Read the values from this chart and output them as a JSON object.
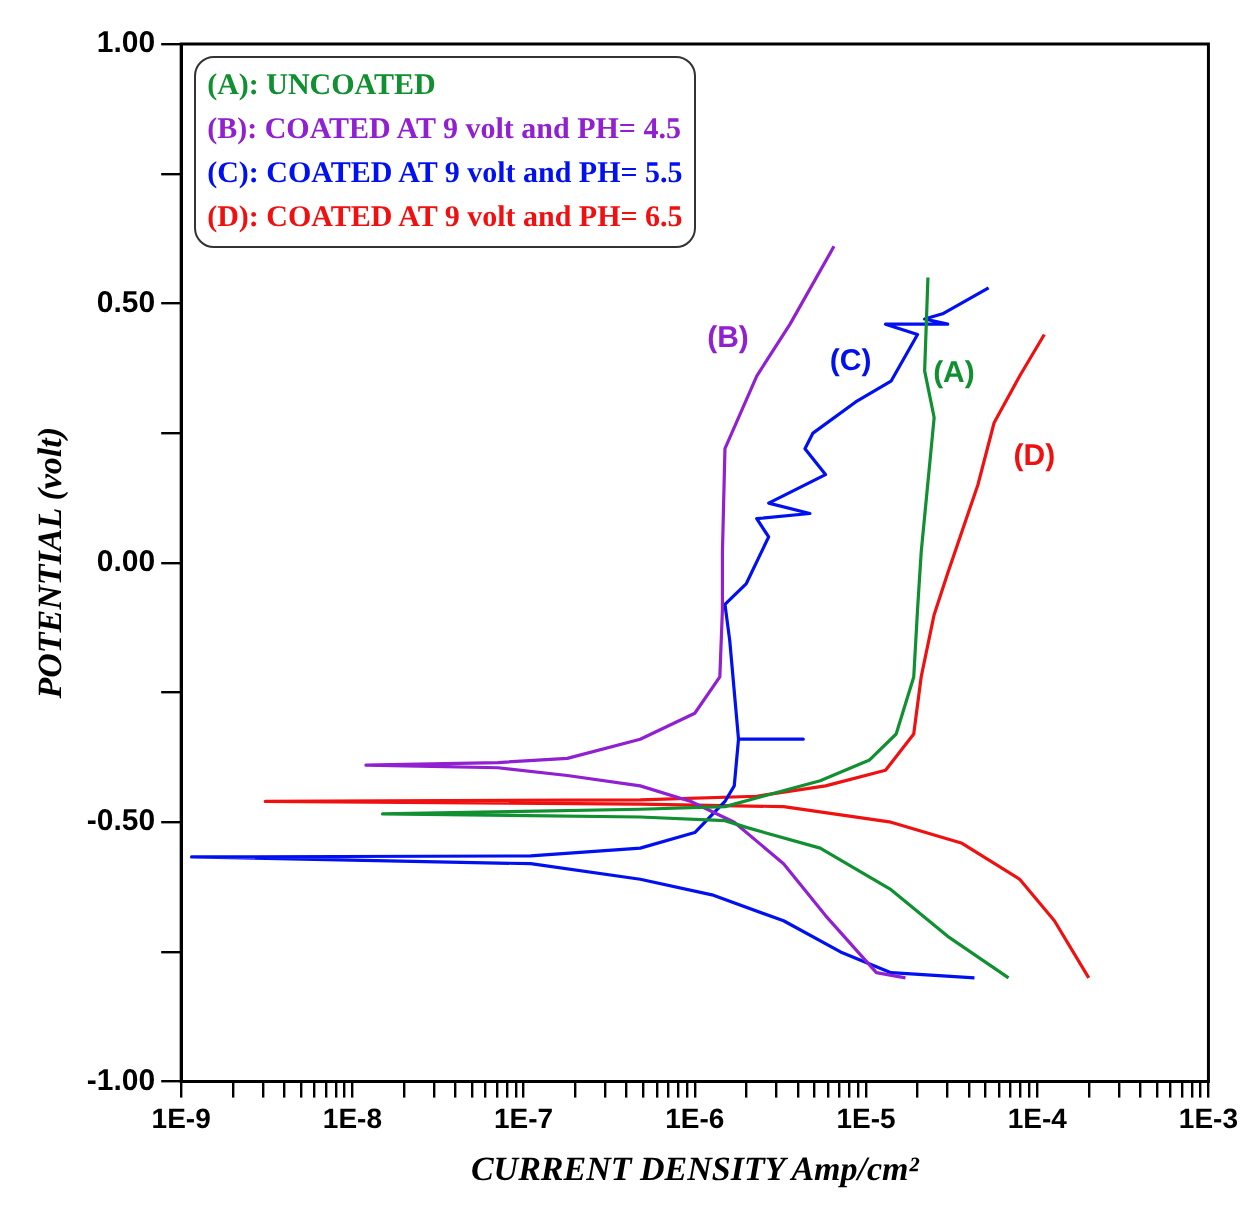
{
  "chart_data": {
    "type": "line",
    "xlabel": "CURRENT DENSITY Amp/cm²",
    "ylabel": "POTENTIAL (volt)",
    "log": "x",
    "grid": false,
    "legend": "top left",
    "marker": "none",
    "line_style": "solid",
    "xlim": [
      1e-09,
      0.001
    ],
    "ylim": [
      -1,
      1
    ],
    "xticks": [
      {
        "value": 1e-09,
        "label": "1E-9"
      },
      {
        "value": 2e-09,
        "label": null
      },
      {
        "value": 3e-09,
        "label": null
      },
      {
        "value": 4e-09,
        "label": null
      },
      {
        "value": 5e-09,
        "label": null
      },
      {
        "value": 6e-09,
        "label": null
      },
      {
        "value": 7e-09,
        "label": null
      },
      {
        "value": 8e-09,
        "label": null
      },
      {
        "value": 9e-09,
        "label": null
      },
      {
        "value": 1e-08,
        "label": "1E-8"
      },
      {
        "value": 2e-08,
        "label": null
      },
      {
        "value": 3e-08,
        "label": null
      },
      {
        "value": 4e-08,
        "label": null
      },
      {
        "value": 5e-08,
        "label": null
      },
      {
        "value": 6e-08,
        "label": null
      },
      {
        "value": 7e-08,
        "label": null
      },
      {
        "value": 8e-08,
        "label": null
      },
      {
        "value": 9e-08,
        "label": null
      },
      {
        "value": 1e-07,
        "label": "1E-7"
      },
      {
        "value": 2e-07,
        "label": null
      },
      {
        "value": 3e-07,
        "label": null
      },
      {
        "value": 4e-07,
        "label": null
      },
      {
        "value": 5e-07,
        "label": null
      },
      {
        "value": 6e-07,
        "label": null
      },
      {
        "value": 7e-07,
        "label": null
      },
      {
        "value": 8e-07,
        "label": null
      },
      {
        "value": 9e-07,
        "label": null
      },
      {
        "value": 1e-06,
        "label": "1E-6"
      },
      {
        "value": 2e-06,
        "label": null
      },
      {
        "value": 3e-06,
        "label": null
      },
      {
        "value": 4e-06,
        "label": null
      },
      {
        "value": 5e-06,
        "label": null
      },
      {
        "value": 6e-06,
        "label": null
      },
      {
        "value": 7e-06,
        "label": null
      },
      {
        "value": 8e-06,
        "label": null
      },
      {
        "value": 9e-06,
        "label": null
      },
      {
        "value": 1e-05,
        "label": "1E-5"
      },
      {
        "value": 2e-05,
        "label": null
      },
      {
        "value": 3e-05,
        "label": null
      },
      {
        "value": 4e-05,
        "label": null
      },
      {
        "value": 5e-05,
        "label": null
      },
      {
        "value": 6e-05,
        "label": null
      },
      {
        "value": 7e-05,
        "label": null
      },
      {
        "value": 8e-05,
        "label": null
      },
      {
        "value": 9e-05,
        "label": null
      },
      {
        "value": 0.0001,
        "label": "1E-4"
      },
      {
        "value": 0.0002,
        "label": null
      },
      {
        "value": 0.0003,
        "label": null
      },
      {
        "value": 0.0004,
        "label": null
      },
      {
        "value": 0.0005,
        "label": null
      },
      {
        "value": 0.0006,
        "label": null
      },
      {
        "value": 0.0007,
        "label": null
      },
      {
        "value": 0.0008,
        "label": null
      },
      {
        "value": 0.0009,
        "label": null
      },
      {
        "value": 0.001,
        "label": "1E-3"
      }
    ],
    "yticks": [
      {
        "value": -1,
        "label": "-1.00"
      },
      {
        "value": -0.75,
        "label": null
      },
      {
        "value": -0.5,
        "label": "-0.50"
      },
      {
        "value": -0.25,
        "label": null
      },
      {
        "value": 0,
        "label": "0.00"
      },
      {
        "value": 0.25,
        "label": null
      },
      {
        "value": 0.5,
        "label": "0.50"
      },
      {
        "value": 0.75,
        "label": null
      },
      {
        "value": 1,
        "label": "1.00"
      }
    ],
    "annotations": [
      "(A)",
      "(B)",
      "(C)",
      "(D)"
    ],
    "series": [
      {
        "name": "(A): UNCOATED",
        "color": "#109030",
        "x": [
          6.8e-05,
          3e-05,
          1.4e-05,
          5.4e-06,
          2e-06,
          1.5e-06,
          4.8e-07,
          1.5e-08,
          4.8e-07,
          1.5e-06,
          2.5e-06,
          5.4e-06,
          1.05e-05,
          1.5e-05,
          1.9e-05,
          2e-05,
          2.1e-05,
          2.5e-05,
          2.2e-05,
          2.3e-05
        ],
        "values": [
          -0.8,
          -0.72,
          -0.63,
          -0.55,
          -0.51,
          -0.497,
          -0.49,
          -0.484,
          -0.475,
          -0.47,
          -0.45,
          -0.42,
          -0.38,
          -0.33,
          -0.22,
          -0.09,
          0.02,
          0.28,
          0.37,
          0.55
        ]
      },
      {
        "name": "(B): COATED AT 9 volt and PH= 4.5",
        "color": "#9020d0",
        "x": [
          1.7e-05,
          1.15e-05,
          5.8e-06,
          3.3e-06,
          1.7e-06,
          9.5e-07,
          4.8e-07,
          1.8e-07,
          7.1e-08,
          1.2e-08,
          7.1e-08,
          1.8e-07,
          4.8e-07,
          1e-06,
          1.4e-06,
          1.45e-06,
          1.45e-06,
          1.5e-06,
          2.3e-06,
          3.6e-06,
          6.5e-06
        ],
        "values": [
          -0.8,
          -0.79,
          -0.68,
          -0.58,
          -0.5,
          -0.46,
          -0.43,
          -0.41,
          -0.395,
          -0.39,
          -0.385,
          -0.377,
          -0.34,
          -0.29,
          -0.22,
          -0.09,
          0.02,
          0.22,
          0.36,
          0.46,
          0.61
        ]
      },
      {
        "name": "(C): COATED AT 9 volt and PH= 5.5",
        "color": "#0010f0",
        "x": [
          4.3e-05,
          1.4e-05,
          7.1e-06,
          3.3e-06,
          1.26e-06,
          4.8e-07,
          1.1e-07,
          1.15e-09,
          1.1e-07,
          4.8e-07,
          1e-06,
          1.5e-06,
          1.7e-06,
          1.8e-06,
          4.3e-06,
          1.8e-06,
          1.6e-06,
          1.5e-06,
          2e-06,
          2.7e-06,
          2.3e-06,
          4.7e-06,
          2.7e-06,
          5.8e-06,
          4.4e-06,
          4.9e-06,
          8.7e-06,
          1.4e-05,
          2e-05,
          1.3e-05,
          3e-05,
          2.2e-05,
          2.8e-05,
          5.2e-05
        ],
        "values": [
          -0.8,
          -0.79,
          -0.75,
          -0.69,
          -0.64,
          -0.61,
          -0.58,
          -0.567,
          -0.565,
          -0.55,
          -0.52,
          -0.46,
          -0.43,
          -0.34,
          -0.34,
          -0.34,
          -0.15,
          -0.08,
          -0.04,
          0.05,
          0.085,
          0.095,
          0.115,
          0.17,
          0.22,
          0.25,
          0.31,
          0.35,
          0.44,
          0.46,
          0.46,
          0.47,
          0.48,
          0.53
        ]
      },
      {
        "name": "(D): COATED AT 9 volt and PH= 6.5",
        "color": "#f01010",
        "x": [
          0.0002,
          0.000126,
          7.9e-05,
          3.6e-05,
          1.4e-05,
          3.3e-06,
          4.8e-07,
          3.1e-09,
          4.8e-07,
          2.3e-06,
          5.8e-06,
          1.3e-05,
          1.9e-05,
          2.1e-05,
          2.5e-05,
          3e-05,
          4.5e-05,
          5.6e-05,
          7.9e-05,
          0.00011
        ],
        "values": [
          -0.8,
          -0.69,
          -0.61,
          -0.54,
          -0.5,
          -0.47,
          -0.465,
          -0.46,
          -0.457,
          -0.45,
          -0.43,
          -0.4,
          -0.33,
          -0.22,
          -0.1,
          -0.02,
          0.15,
          0.27,
          0.36,
          0.44
        ]
      }
    ]
  }
}
